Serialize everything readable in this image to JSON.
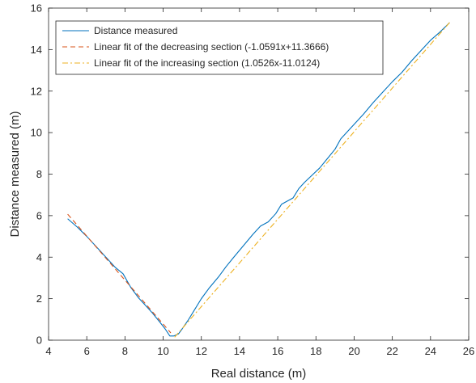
{
  "chart_data": {
    "type": "line",
    "xlabel": "Real distance (m)",
    "ylabel": "Distance measured (m)",
    "xlim": [
      4,
      26
    ],
    "ylim": [
      0,
      16
    ],
    "xticks": [
      4,
      6,
      8,
      10,
      12,
      14,
      16,
      18,
      20,
      22,
      24,
      26
    ],
    "yticks": [
      0,
      2,
      4,
      6,
      8,
      10,
      12,
      14,
      16
    ],
    "grid": false,
    "legend_position": "top-left",
    "series": [
      {
        "name": "Distance measured",
        "color": "#0072BD",
        "style": "solid",
        "x": [
          5.0,
          5.5,
          6.0,
          6.5,
          7.0,
          7.5,
          7.9,
          8.3,
          8.7,
          9.0,
          9.4,
          9.8,
          10.1,
          10.35,
          10.55,
          10.8,
          11.0,
          11.3,
          11.6,
          12.0,
          12.4,
          12.9,
          13.3,
          13.7,
          14.2,
          14.7,
          15.1,
          15.5,
          15.9,
          16.2,
          16.5,
          16.8,
          17.1,
          17.4,
          17.8,
          18.2,
          18.6,
          19.0,
          19.3,
          19.6,
          20.0,
          20.5,
          21.0,
          21.5,
          22.0,
          22.5,
          23.0,
          23.5,
          24.0,
          24.5,
          25.0
        ],
        "y": [
          5.85,
          5.45,
          5.0,
          4.5,
          4.0,
          3.5,
          3.2,
          2.55,
          2.05,
          1.75,
          1.35,
          0.9,
          0.55,
          0.2,
          0.2,
          0.3,
          0.55,
          0.95,
          1.4,
          2.0,
          2.5,
          3.05,
          3.55,
          4.0,
          4.55,
          5.1,
          5.5,
          5.7,
          6.1,
          6.55,
          6.7,
          6.85,
          7.3,
          7.6,
          7.95,
          8.3,
          8.75,
          9.2,
          9.7,
          10.0,
          10.4,
          10.9,
          11.45,
          11.95,
          12.45,
          12.9,
          13.45,
          13.95,
          14.45,
          14.85,
          15.3
        ]
      },
      {
        "name": "Linear fit of the decreasing section (-1.0591x+11.3666)",
        "color": "#D95319",
        "style": "dashed",
        "slope": -1.0591,
        "intercept": 11.3666,
        "x_range": [
          5.0,
          10.4
        ]
      },
      {
        "name": "Linear fit of the increasing section (1.0526x-11.0124)",
        "color": "#EDB120",
        "style": "dashdot",
        "slope": 1.0526,
        "intercept": -11.0124,
        "x_range": [
          10.6,
          25.0
        ]
      }
    ]
  }
}
